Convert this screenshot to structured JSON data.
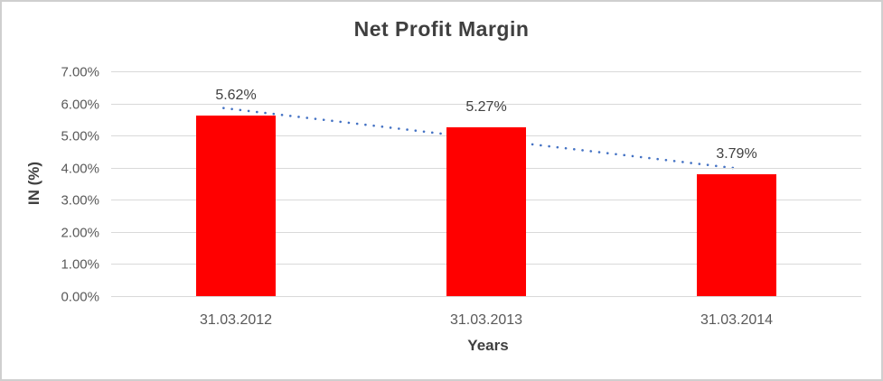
{
  "chart_data": {
    "type": "bar",
    "title": "Net Profit Margin",
    "xlabel": "Years",
    "ylabel": "IN (%)",
    "categories": [
      "31.03.2012",
      "31.03.2013",
      "31.03.2014"
    ],
    "values": [
      5.62,
      5.27,
      3.79
    ],
    "data_labels": [
      "5.62%",
      "5.27%",
      "3.79%"
    ],
    "y_tick_labels": [
      "0.00%",
      "1.00%",
      "2.00%",
      "3.00%",
      "4.00%",
      "5.00%",
      "6.00%",
      "7.00%"
    ],
    "ylim": [
      0,
      7
    ],
    "legend": "none",
    "grid": true,
    "bar_color": "#ff0000",
    "gridline_color": "#d9d9d9",
    "axis_line_color": "#d9d9d9",
    "trendline": {
      "type": "linear",
      "style": "dotted",
      "color": "#4472c4",
      "start_value": 5.81,
      "end_value": 3.98
    }
  },
  "colors": {
    "title_text": "#3f3f3f",
    "tick_text": "#595959",
    "data_label_text": "#404040",
    "frame_border": "#cfcfcf",
    "background": "#ffffff"
  }
}
